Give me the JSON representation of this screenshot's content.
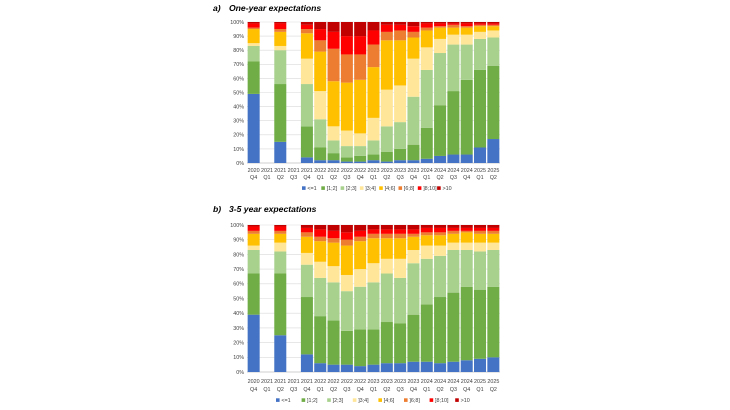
{
  "chart_data": [
    {
      "type": "bar",
      "stacking": "percent",
      "panel_label": "a)",
      "title": "One-year expectations",
      "ylim": [
        0,
        100
      ],
      "y_ticks": [
        "0%",
        "10%",
        "20%",
        "30%",
        "40%",
        "50%",
        "60%",
        "70%",
        "80%",
        "90%",
        "100%"
      ],
      "grid": true,
      "legend": "bottom",
      "categories": [
        {
          "year": "2020",
          "quarter": "Q4"
        },
        {
          "year": "2021",
          "quarter": "Q1"
        },
        {
          "year": "2021",
          "quarter": "Q2"
        },
        {
          "year": "2021",
          "quarter": "Q3"
        },
        {
          "year": "2021",
          "quarter": "Q4"
        },
        {
          "year": "2022",
          "quarter": "Q1"
        },
        {
          "year": "2022",
          "quarter": "Q2"
        },
        {
          "year": "2022",
          "quarter": "Q3"
        },
        {
          "year": "2022",
          "quarter": "Q4"
        },
        {
          "year": "2023",
          "quarter": "Q1"
        },
        {
          "year": "2023",
          "quarter": "Q2"
        },
        {
          "year": "2023",
          "quarter": "Q3"
        },
        {
          "year": "2023",
          "quarter": "Q4"
        },
        {
          "year": "2024",
          "quarter": "Q1"
        },
        {
          "year": "2024",
          "quarter": "Q2"
        },
        {
          "year": "2024",
          "quarter": "Q3"
        },
        {
          "year": "2024",
          "quarter": "Q4"
        },
        {
          "year": "2025",
          "quarter": "Q1"
        },
        {
          "year": "2025",
          "quarter": "Q2"
        }
      ],
      "series": [
        {
          "name": "<=1",
          "color": "#4472C4",
          "values": [
            49,
            null,
            15,
            null,
            4,
            2,
            2,
            1,
            1,
            2,
            1,
            2,
            2,
            3,
            5,
            6,
            6,
            11,
            17
          ]
        },
        {
          "name": "]1;2]",
          "color": "#70AD47",
          "values": [
            23,
            null,
            41,
            null,
            22,
            9,
            5,
            3,
            4,
            4,
            7,
            8,
            11,
            22,
            36,
            45,
            53,
            55,
            52
          ]
        },
        {
          "name": "]2;3]",
          "color": "#A9D18E",
          "values": [
            11,
            null,
            24,
            null,
            30,
            20,
            9,
            8,
            7,
            10,
            18,
            19,
            34,
            41,
            37,
            33,
            25,
            22,
            20
          ]
        },
        {
          "name": "]3;4]",
          "color": "#FFE699",
          "values": [
            2,
            null,
            3,
            null,
            18,
            20,
            10,
            11,
            9,
            16,
            26,
            26,
            27,
            16,
            10,
            7,
            7,
            5,
            5
          ]
        },
        {
          "name": "]4;6]",
          "color": "#FFC000",
          "values": [
            10,
            null,
            10,
            null,
            18,
            28,
            32,
            34,
            38,
            36,
            35,
            32,
            15,
            12,
            8,
            5,
            5,
            4,
            3
          ]
        },
        {
          "name": "]6;8]",
          "color": "#ED7D31",
          "values": [
            1,
            null,
            2,
            null,
            3,
            8,
            23,
            20,
            18,
            16,
            6,
            7,
            4,
            2,
            1,
            2,
            1,
            1,
            1
          ]
        },
        {
          "name": "]8;10]",
          "color": "#FF0000",
          "values": [
            3,
            null,
            4,
            null,
            3,
            8,
            12,
            13,
            13,
            10,
            5,
            4,
            4,
            3,
            2,
            1,
            2,
            1,
            1
          ]
        },
        {
          "name": ">10",
          "color": "#C00000",
          "values": [
            1,
            null,
            1,
            null,
            2,
            5,
            7,
            10,
            10,
            6,
            2,
            2,
            3,
            1,
            1,
            1,
            1,
            1,
            1
          ]
        }
      ]
    },
    {
      "type": "bar",
      "stacking": "percent",
      "panel_label": "b)",
      "title": "3-5 year expectations",
      "ylim": [
        0,
        100
      ],
      "y_ticks": [
        "0%",
        "10%",
        "20%",
        "30%",
        "40%",
        "50%",
        "60%",
        "70%",
        "80%",
        "90%",
        "100%"
      ],
      "grid": true,
      "legend": "bottom",
      "categories": [
        {
          "year": "2020",
          "quarter": "Q4"
        },
        {
          "year": "2021",
          "quarter": "Q1"
        },
        {
          "year": "2021",
          "quarter": "Q2"
        },
        {
          "year": "2021",
          "quarter": "Q3"
        },
        {
          "year": "2021",
          "quarter": "Q4"
        },
        {
          "year": "2022",
          "quarter": "Q1"
        },
        {
          "year": "2022",
          "quarter": "Q2"
        },
        {
          "year": "2022",
          "quarter": "Q3"
        },
        {
          "year": "2022",
          "quarter": "Q4"
        },
        {
          "year": "2023",
          "quarter": "Q1"
        },
        {
          "year": "2023",
          "quarter": "Q2"
        },
        {
          "year": "2023",
          "quarter": "Q3"
        },
        {
          "year": "2023",
          "quarter": "Q4"
        },
        {
          "year": "2024",
          "quarter": "Q1"
        },
        {
          "year": "2024",
          "quarter": "Q2"
        },
        {
          "year": "2024",
          "quarter": "Q3"
        },
        {
          "year": "2024",
          "quarter": "Q4"
        },
        {
          "year": "2025",
          "quarter": "Q1"
        },
        {
          "year": "2025",
          "quarter": "Q2"
        }
      ],
      "series": [
        {
          "name": "<=1",
          "color": "#4472C4",
          "values": [
            39,
            null,
            25,
            null,
            12,
            6,
            5,
            5,
            4,
            5,
            6,
            6,
            7,
            7,
            6,
            7,
            8,
            9,
            10
          ]
        },
        {
          "name": "]1;2]",
          "color": "#70AD47",
          "values": [
            28,
            null,
            42,
            null,
            39,
            32,
            30,
            23,
            25,
            24,
            28,
            27,
            32,
            39,
            45,
            47,
            50,
            47,
            48
          ]
        },
        {
          "name": "]2;3]",
          "color": "#A9D18E",
          "values": [
            16,
            null,
            15,
            null,
            22,
            26,
            26,
            27,
            29,
            32,
            33,
            31,
            35,
            31,
            28,
            29,
            25,
            26,
            25
          ]
        },
        {
          "name": "]3;4]",
          "color": "#FFE699",
          "values": [
            3,
            null,
            6,
            null,
            8,
            11,
            11,
            11,
            12,
            13,
            10,
            13,
            9,
            9,
            7,
            5,
            5,
            6,
            5
          ]
        },
        {
          "name": "]4;6]",
          "color": "#FFC000",
          "values": [
            8,
            null,
            6,
            null,
            11,
            14,
            16,
            20,
            19,
            17,
            14,
            14,
            9,
            7,
            7,
            6,
            7,
            6,
            6
          ]
        },
        {
          "name": "]6;8]",
          "color": "#ED7D31",
          "values": [
            2,
            null,
            2,
            null,
            3,
            3,
            3,
            4,
            3,
            3,
            3,
            3,
            2,
            2,
            2,
            2,
            1,
            2,
            2
          ]
        },
        {
          "name": "]8;10]",
          "color": "#FF0000",
          "values": [
            3,
            null,
            3,
            null,
            3,
            5,
            5,
            5,
            4,
            3,
            3,
            3,
            3,
            3,
            3,
            2,
            2,
            2,
            2
          ]
        },
        {
          "name": ">10",
          "color": "#C00000",
          "values": [
            1,
            null,
            1,
            null,
            2,
            3,
            4,
            5,
            4,
            3,
            3,
            3,
            3,
            2,
            2,
            2,
            2,
            2,
            2
          ]
        }
      ]
    }
  ]
}
